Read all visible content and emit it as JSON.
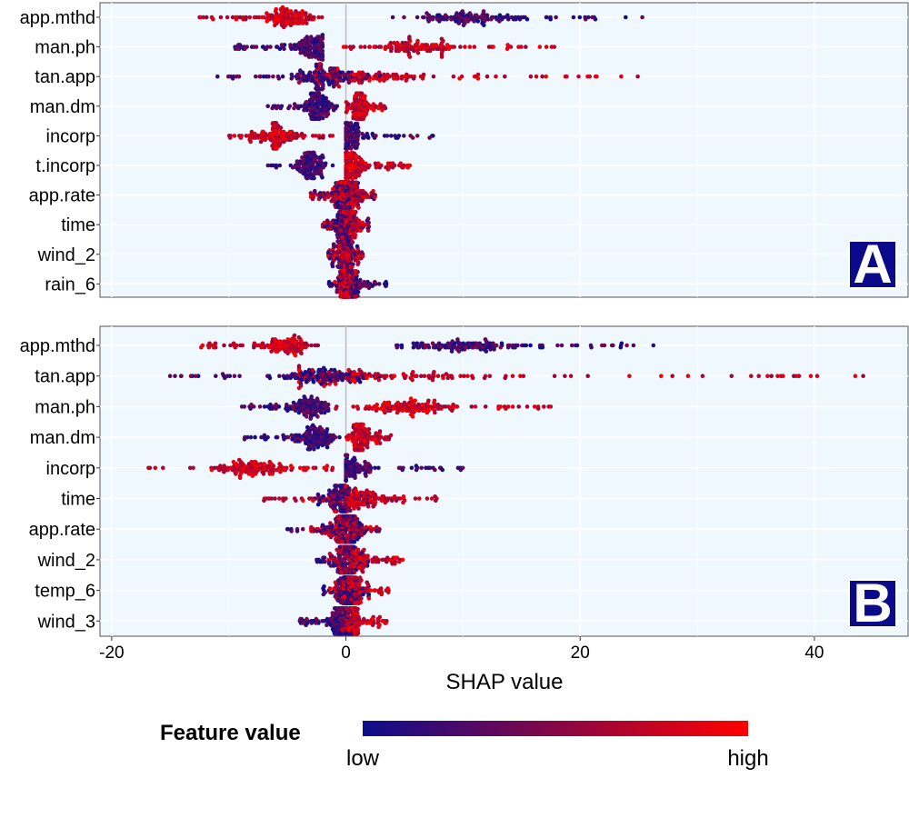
{
  "chart_data": {
    "type": "scatter",
    "subtype": "shap-beeswarm",
    "xlabel": "SHAP value",
    "xlim": [
      -21,
      48
    ],
    "xticks": [
      -20,
      0,
      20,
      40
    ],
    "vline_at": 0,
    "grid": true,
    "colors": {
      "low": "#0d0d8c",
      "high": "#ff0000",
      "panel_bg": "#f0f8ff",
      "badge_bg": "#0a0a8a"
    },
    "legend": {
      "title": "Feature value",
      "low_label": "low",
      "high_label": "high",
      "placement": "bottom"
    },
    "panels": [
      {
        "label": "A",
        "features": [
          {
            "name": "app.mthd",
            "low_range": [
              4.0,
              25.5
            ],
            "high_range": [
              -12.5,
              -2.0
            ],
            "low_mode": 10.0,
            "high_mode": -5.0,
            "skew": 0.0
          },
          {
            "name": "man.ph",
            "low_range": [
              -9.5,
              -2.0
            ],
            "high_range": [
              -1.0,
              18.0
            ],
            "low_mode": -3.0,
            "high_mode": 6.0,
            "skew": 0.0
          },
          {
            "name": "tan.app",
            "low_range": [
              -11.5,
              3.0
            ],
            "high_range": [
              -4.0,
              25.0
            ],
            "low_mode": -2.0,
            "high_mode": 2.0,
            "skew": 0.0
          },
          {
            "name": "man.dm",
            "low_range": [
              -6.8,
              -0.5
            ],
            "high_range": [
              0.0,
              3.5
            ],
            "low_mode": -2.5,
            "high_mode": 1.2,
            "skew": 0.0
          },
          {
            "name": "incorp",
            "low_range": [
              0.0,
              7.5
            ],
            "high_range": [
              -10.0,
              -1.0
            ],
            "low_mode": 0.3,
            "high_mode": -6.0,
            "skew": 0.0
          },
          {
            "name": "t.incorp",
            "low_range": [
              -6.8,
              -1.0
            ],
            "high_range": [
              0.0,
              5.5
            ],
            "low_mode": -3.0,
            "high_mode": 0.5,
            "skew": 0.0
          },
          {
            "name": "app.rate",
            "low_range": [
              -3.0,
              2.5
            ],
            "high_range": [
              -3.0,
              2.5
            ],
            "low_mode": 0.0,
            "high_mode": 0.0,
            "skew": 0.0
          },
          {
            "name": "time",
            "low_range": [
              -2.0,
              2.0
            ],
            "high_range": [
              -2.0,
              2.0
            ],
            "low_mode": -0.3,
            "high_mode": 0.3,
            "skew": 0.0
          },
          {
            "name": "wind_2",
            "low_range": [
              -1.5,
              1.5
            ],
            "high_range": [
              -1.5,
              1.5
            ],
            "low_mode": 0.0,
            "high_mode": 0.0,
            "skew": 0.0
          },
          {
            "name": "rain_6",
            "low_range": [
              -1.5,
              3.5
            ],
            "high_range": [
              -1.0,
              1.0
            ],
            "low_mode": 0.3,
            "high_mode": 0.0,
            "skew": 0.0
          }
        ]
      },
      {
        "label": "B",
        "features": [
          {
            "name": "app.mthd",
            "low_range": [
              4.0,
              26.5
            ],
            "high_range": [
              -12.5,
              -2.0
            ],
            "low_mode": 10.0,
            "high_mode": -5.0,
            "skew": 0.0
          },
          {
            "name": "tan.app",
            "low_range": [
              -15.5,
              3.0
            ],
            "high_range": [
              -4.0,
              44.5
            ],
            "low_mode": -2.0,
            "high_mode": 2.5,
            "skew": 0.0
          },
          {
            "name": "man.ph",
            "low_range": [
              -9.0,
              -1.5
            ],
            "high_range": [
              -1.0,
              17.5
            ],
            "low_mode": -3.0,
            "high_mode": 6.0,
            "skew": 0.0
          },
          {
            "name": "man.dm",
            "low_range": [
              -9.0,
              -0.5
            ],
            "high_range": [
              0.0,
              4.0
            ],
            "low_mode": -2.5,
            "high_mode": 1.2,
            "skew": 0.0
          },
          {
            "name": "incorp",
            "low_range": [
              0.0,
              10.0
            ],
            "high_range": [
              -17.0,
              -1.0
            ],
            "low_mode": 0.3,
            "high_mode": -8.0,
            "skew": 0.0
          },
          {
            "name": "time",
            "low_range": [
              -3.0,
              2.0
            ],
            "high_range": [
              -7.0,
              7.8
            ],
            "low_mode": -0.5,
            "high_mode": 1.0,
            "skew": 0.0
          },
          {
            "name": "app.rate",
            "low_range": [
              -5.0,
              3.0
            ],
            "high_range": [
              -3.0,
              3.0
            ],
            "low_mode": 0.0,
            "high_mode": 0.0,
            "skew": 0.0
          },
          {
            "name": "wind_2",
            "low_range": [
              -2.5,
              2.0
            ],
            "high_range": [
              -1.5,
              5.0
            ],
            "low_mode": 0.0,
            "high_mode": 0.5,
            "skew": 0.0
          },
          {
            "name": "temp_6",
            "low_range": [
              -2.0,
              2.0
            ],
            "high_range": [
              -1.5,
              4.0
            ],
            "low_mode": 0.0,
            "high_mode": 0.5,
            "skew": 0.0
          },
          {
            "name": "wind_3",
            "low_range": [
              -4.0,
              0.5
            ],
            "high_range": [
              -0.5,
              3.5
            ],
            "low_mode": -0.5,
            "high_mode": 0.5,
            "skew": 0.0
          }
        ]
      }
    ]
  }
}
